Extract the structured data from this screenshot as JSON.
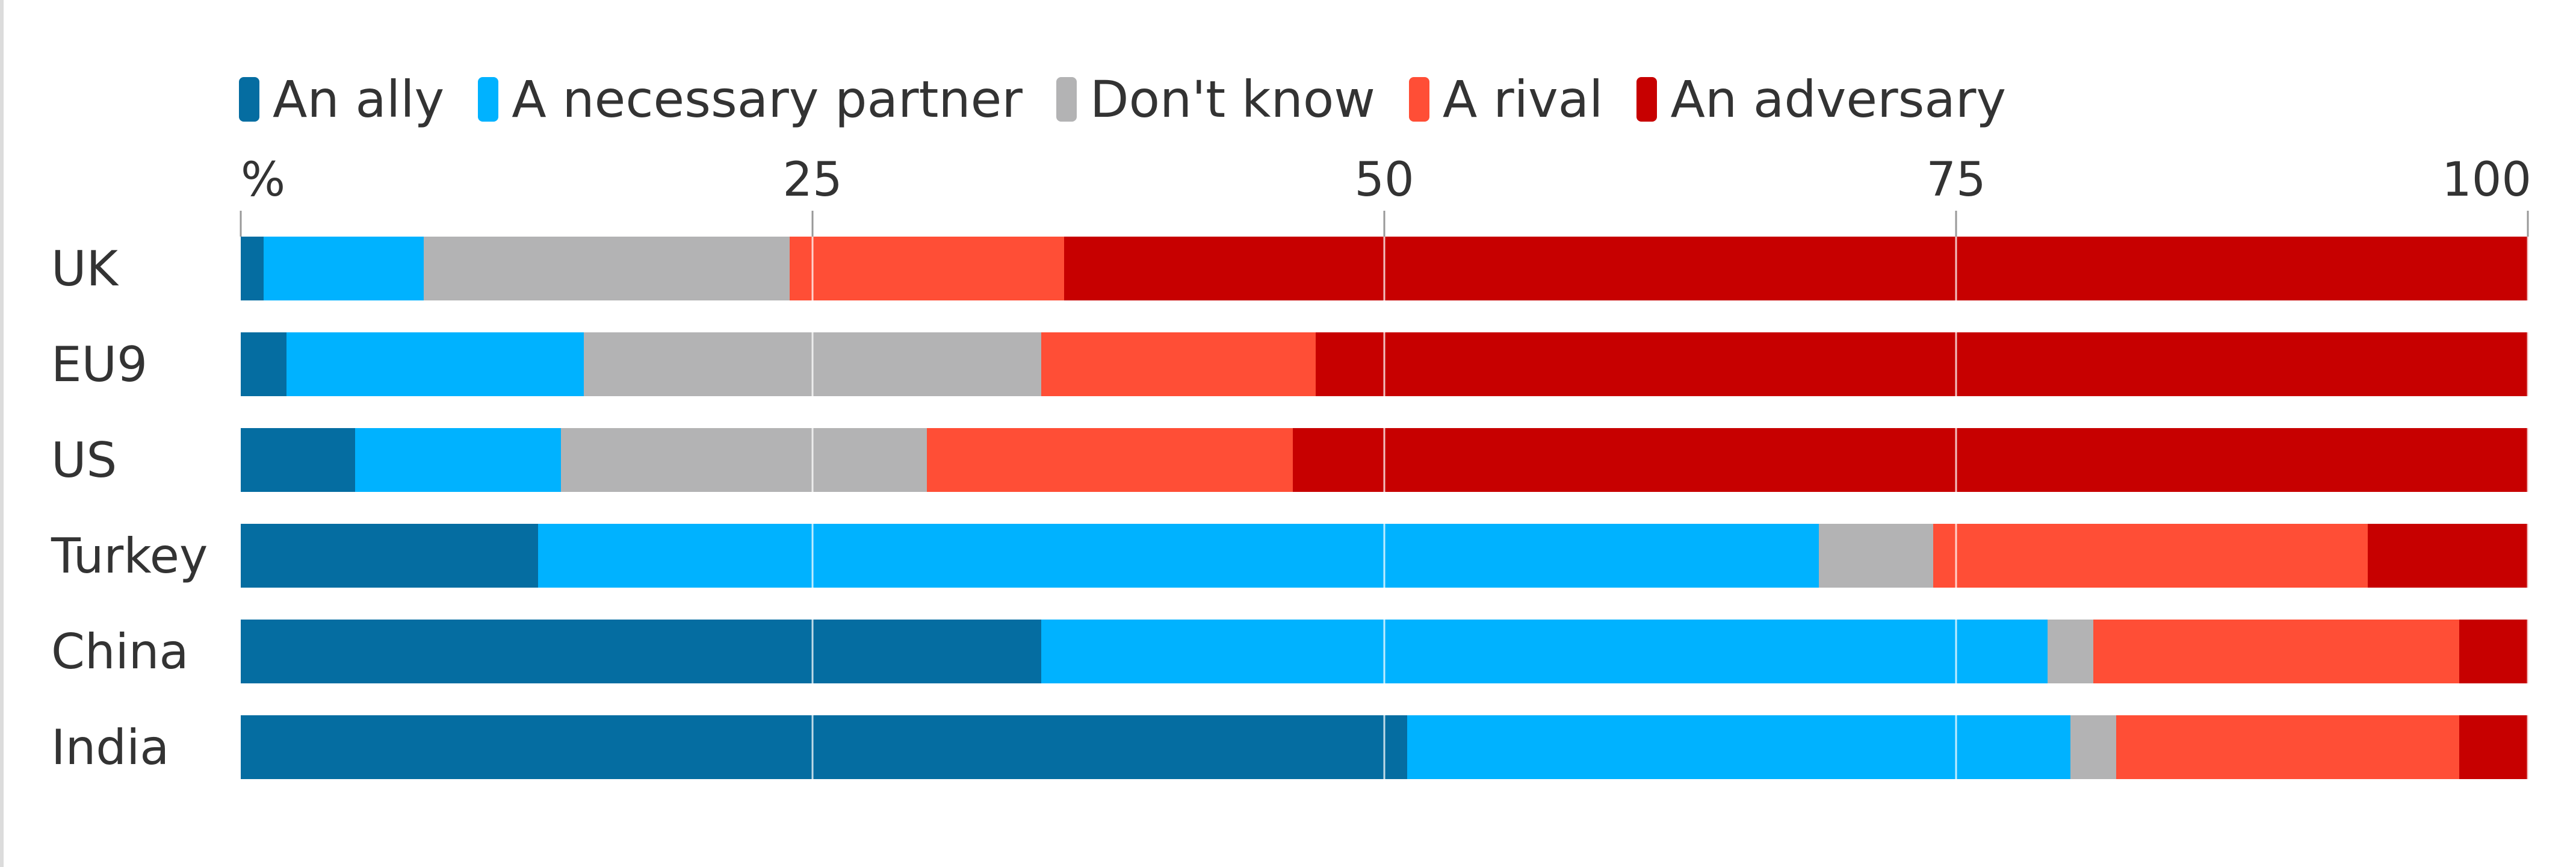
{
  "chart_data": {
    "type": "bar",
    "orientation": "horizontal",
    "stacked": true,
    "categories": [
      "UK",
      "EU9",
      "US",
      "Turkey",
      "China",
      "India"
    ],
    "series": [
      {
        "name": "An ally",
        "color": "#056da1",
        "values": [
          1,
          2,
          5,
          13,
          35,
          51
        ]
      },
      {
        "name": "A necessary partner",
        "color": "#00b2ff",
        "values": [
          7,
          13,
          9,
          56,
          44,
          29
        ]
      },
      {
        "name": "Don't know",
        "color": "#b3b3b4",
        "values": [
          16,
          20,
          16,
          5,
          2,
          2
        ]
      },
      {
        "name": "A rival",
        "color": "#ff4e36",
        "values": [
          12,
          12,
          16,
          19,
          16,
          15
        ]
      },
      {
        "name": "An adversary",
        "color": "#c70000",
        "values": [
          64,
          53,
          54,
          7,
          3,
          3
        ]
      }
    ],
    "xlim": [
      0,
      100
    ],
    "x_ticks": [
      "%",
      "25",
      "50",
      "75",
      "100"
    ],
    "grid": true,
    "legend_position": "top-left"
  }
}
